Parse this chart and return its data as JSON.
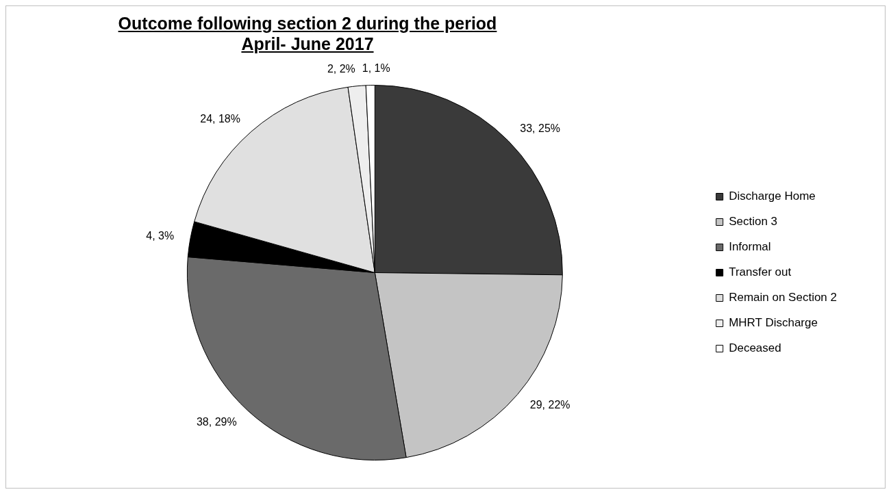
{
  "chart_data": {
    "type": "pie",
    "title": "Outcome following section 2 during the period April- June 2017",
    "categories": [
      "Discharge Home",
      "Section 3",
      "Informal",
      "Transfer out",
      "Remain on Section 2",
      "MHRT Discharge",
      "Deceased"
    ],
    "values": [
      33,
      29,
      38,
      4,
      24,
      2,
      1
    ],
    "colors": [
      "#3a3a3a",
      "#c4c4c4",
      "#6a6a6a",
      "#000000",
      "#e0e0e0",
      "#eeeeee",
      "#ffffff"
    ],
    "value_labels": [
      "33, 25%",
      "29, 22%",
      "38, 29%",
      "4, 3%",
      "24, 18%",
      "2, 2%",
      "1, 1%"
    ],
    "legend": "right"
  }
}
